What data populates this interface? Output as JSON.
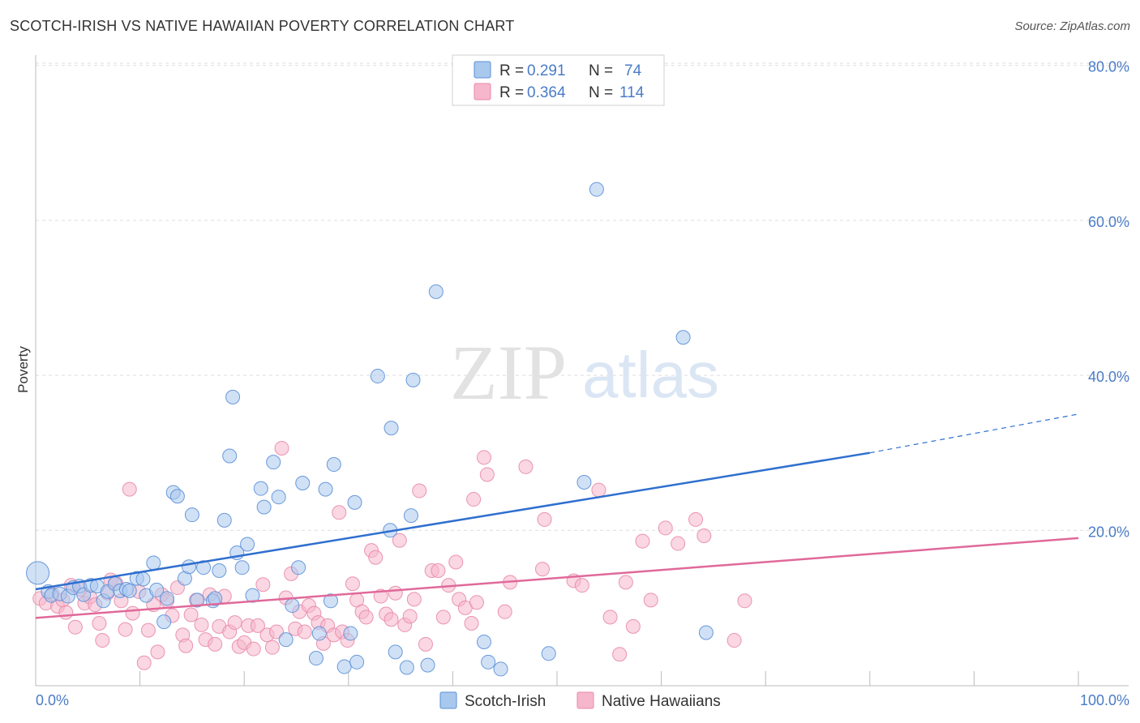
{
  "title": "SCOTCH-IRISH VS NATIVE HAWAIIAN POVERTY CORRELATION CHART",
  "source": "Source: ZipAtlas.com",
  "watermark": {
    "zip": "ZIP",
    "atlas": "atlas"
  },
  "colors": {
    "blue_fill": "#a9c8ee",
    "blue_stroke": "#5b8fd6",
    "blue_line": "#2f6fcf",
    "pink_fill": "#f6b6cb",
    "pink_stroke": "#e88aab",
    "pink_line": "#e0699a",
    "tick_text": "#4a7cc7",
    "grid": "#dddddd"
  },
  "legend": {
    "rows": [
      {
        "r_label": "R =",
        "r_value": "0.291",
        "n_label": "N =",
        "n_value": "74"
      },
      {
        "r_label": "R =",
        "r_value": "0.364",
        "n_label": "N =",
        "n_value": "114"
      }
    ]
  },
  "chart_data": {
    "type": "scatter",
    "title": "SCOTCH-IRISH VS NATIVE HAWAIIAN POVERTY CORRELATION CHART",
    "xlabel": "",
    "ylabel": "Poverty",
    "xlim": [
      0,
      100
    ],
    "ylim": [
      0,
      86
    ],
    "x_tick_labels": [
      "0.0%",
      "100.0%"
    ],
    "y_ticks": [
      20,
      40,
      60,
      80
    ],
    "y_tick_labels": [
      "20.0%",
      "40.0%",
      "60.0%",
      "80.0%"
    ],
    "grid": true,
    "legend_position": "top-center",
    "series": [
      {
        "name": "Scotch-Irish",
        "color": "#a9c8ee",
        "trend": {
          "x": [
            0,
            80
          ],
          "y": [
            12.4,
            30.0
          ],
          "dashed_to": [
            100,
            35.0
          ]
        },
        "points": [
          [
            0.2,
            14.5
          ],
          [
            1.2,
            12.1
          ],
          [
            1.5,
            11.6
          ],
          [
            2.3,
            11.8
          ],
          [
            3.1,
            11.5
          ],
          [
            3.6,
            12.6
          ],
          [
            4.2,
            12.8
          ],
          [
            4.6,
            11.7
          ],
          [
            5.3,
            12.9
          ],
          [
            5.9,
            12.8
          ],
          [
            6.5,
            10.9
          ],
          [
            6.9,
            12.1
          ],
          [
            7.6,
            13.1
          ],
          [
            8.1,
            12.2
          ],
          [
            8.7,
            12.4
          ],
          [
            9.0,
            12.2
          ],
          [
            9.7,
            13.8
          ],
          [
            10.3,
            13.7
          ],
          [
            10.6,
            11.6
          ],
          [
            11.6,
            12.3
          ],
          [
            12.3,
            8.2
          ],
          [
            12.6,
            11.2
          ],
          [
            11.3,
            15.8
          ],
          [
            13.2,
            24.9
          ],
          [
            13.6,
            24.4
          ],
          [
            14.3,
            13.8
          ],
          [
            15.0,
            22.0
          ],
          [
            14.7,
            15.3
          ],
          [
            16.1,
            15.2
          ],
          [
            17.0,
            10.9
          ],
          [
            17.2,
            11.2
          ],
          [
            17.6,
            14.8
          ],
          [
            18.1,
            21.3
          ],
          [
            18.6,
            29.6
          ],
          [
            18.9,
            37.2
          ],
          [
            19.3,
            17.1
          ],
          [
            19.8,
            15.2
          ],
          [
            20.3,
            18.2
          ],
          [
            20.8,
            11.6
          ],
          [
            21.6,
            25.4
          ],
          [
            21.9,
            23.0
          ],
          [
            22.8,
            28.8
          ],
          [
            23.3,
            24.3
          ],
          [
            24.0,
            5.9
          ],
          [
            24.6,
            10.3
          ],
          [
            25.2,
            15.2
          ],
          [
            25.6,
            26.1
          ],
          [
            26.9,
            3.5
          ],
          [
            27.2,
            6.7
          ],
          [
            27.8,
            25.3
          ],
          [
            28.3,
            10.9
          ],
          [
            28.6,
            28.5
          ],
          [
            29.6,
            2.4
          ],
          [
            30.2,
            6.7
          ],
          [
            30.6,
            23.6
          ],
          [
            30.8,
            3.0
          ],
          [
            32.8,
            39.9
          ],
          [
            34.1,
            33.2
          ],
          [
            34.5,
            4.3
          ],
          [
            35.6,
            2.3
          ],
          [
            36.2,
            39.4
          ],
          [
            37.6,
            2.6
          ],
          [
            38.4,
            50.8
          ],
          [
            43.0,
            5.6
          ],
          [
            43.4,
            3.0
          ],
          [
            44.6,
            2.1
          ],
          [
            49.2,
            4.1
          ],
          [
            52.6,
            26.2
          ],
          [
            53.8,
            64.0
          ],
          [
            62.1,
            44.9
          ],
          [
            64.3,
            6.8
          ],
          [
            36.0,
            21.9
          ],
          [
            34.0,
            20.0
          ],
          [
            15.5,
            11.0
          ]
        ]
      },
      {
        "name": "Native Hawaiians",
        "color": "#f6b6cb",
        "trend": {
          "x": [
            0,
            100
          ],
          "y": [
            8.7,
            19.0
          ]
        },
        "points": [
          [
            0.4,
            11.2
          ],
          [
            1.0,
            10.6
          ],
          [
            1.6,
            11.8
          ],
          [
            2.1,
            10.2
          ],
          [
            2.6,
            11.0
          ],
          [
            2.9,
            9.4
          ],
          [
            3.4,
            12.9
          ],
          [
            3.8,
            7.5
          ],
          [
            4.3,
            12.4
          ],
          [
            4.7,
            10.6
          ],
          [
            5.2,
            11.4
          ],
          [
            5.7,
            10.4
          ],
          [
            6.1,
            8.0
          ],
          [
            6.4,
            5.8
          ],
          [
            6.9,
            11.9
          ],
          [
            7.2,
            13.6
          ],
          [
            7.7,
            13.2
          ],
          [
            8.2,
            10.9
          ],
          [
            8.6,
            7.2
          ],
          [
            9.0,
            25.3
          ],
          [
            9.3,
            9.3
          ],
          [
            9.9,
            12.1
          ],
          [
            10.4,
            2.9
          ],
          [
            10.8,
            7.1
          ],
          [
            11.3,
            10.4
          ],
          [
            11.7,
            4.3
          ],
          [
            12.1,
            11.7
          ],
          [
            12.6,
            10.9
          ],
          [
            13.1,
            9.0
          ],
          [
            13.6,
            12.6
          ],
          [
            14.1,
            6.5
          ],
          [
            14.4,
            5.1
          ],
          [
            14.9,
            9.1
          ],
          [
            15.4,
            11.0
          ],
          [
            15.9,
            7.8
          ],
          [
            16.3,
            5.9
          ],
          [
            16.7,
            11.7
          ],
          [
            17.2,
            5.3
          ],
          [
            17.6,
            7.6
          ],
          [
            18.1,
            11.5
          ],
          [
            18.6,
            6.9
          ],
          [
            19.1,
            8.1
          ],
          [
            19.5,
            5.0
          ],
          [
            20.0,
            5.5
          ],
          [
            20.4,
            7.7
          ],
          [
            20.9,
            4.7
          ],
          [
            21.3,
            7.7
          ],
          [
            21.8,
            13.0
          ],
          [
            22.2,
            6.5
          ],
          [
            22.7,
            4.9
          ],
          [
            23.1,
            6.9
          ],
          [
            23.6,
            30.6
          ],
          [
            24.0,
            11.3
          ],
          [
            24.5,
            14.4
          ],
          [
            24.9,
            7.3
          ],
          [
            25.3,
            9.5
          ],
          [
            25.8,
            6.9
          ],
          [
            26.2,
            10.3
          ],
          [
            26.7,
            9.3
          ],
          [
            27.1,
            8.1
          ],
          [
            27.6,
            5.4
          ],
          [
            28.0,
            7.7
          ],
          [
            28.6,
            6.5
          ],
          [
            29.1,
            22.3
          ],
          [
            29.4,
            6.9
          ],
          [
            29.9,
            5.8
          ],
          [
            30.4,
            13.1
          ],
          [
            30.8,
            11.0
          ],
          [
            31.3,
            9.5
          ],
          [
            31.7,
            8.8
          ],
          [
            32.2,
            17.4
          ],
          [
            32.6,
            16.5
          ],
          [
            33.1,
            11.5
          ],
          [
            33.6,
            9.2
          ],
          [
            34.1,
            8.5
          ],
          [
            34.5,
            11.9
          ],
          [
            34.9,
            18.7
          ],
          [
            35.4,
            7.8
          ],
          [
            35.9,
            8.9
          ],
          [
            36.3,
            11.1
          ],
          [
            36.8,
            25.1
          ],
          [
            37.4,
            5.3
          ],
          [
            38.0,
            14.8
          ],
          [
            38.6,
            14.8
          ],
          [
            39.1,
            8.8
          ],
          [
            39.6,
            12.9
          ],
          [
            40.3,
            15.9
          ],
          [
            40.6,
            11.1
          ],
          [
            41.2,
            10.0
          ],
          [
            41.8,
            8.0
          ],
          [
            42.0,
            24.0
          ],
          [
            42.3,
            10.7
          ],
          [
            43.0,
            29.4
          ],
          [
            43.3,
            27.2
          ],
          [
            45.0,
            9.5
          ],
          [
            45.5,
            13.3
          ],
          [
            47.0,
            28.2
          ],
          [
            48.6,
            15.0
          ],
          [
            48.8,
            21.4
          ],
          [
            51.6,
            13.5
          ],
          [
            52.4,
            12.9
          ],
          [
            54.0,
            25.2
          ],
          [
            55.1,
            8.8
          ],
          [
            56.0,
            4.0
          ],
          [
            56.6,
            13.3
          ],
          [
            57.3,
            7.6
          ],
          [
            58.2,
            18.6
          ],
          [
            59.0,
            11.0
          ],
          [
            60.4,
            20.3
          ],
          [
            61.6,
            18.3
          ],
          [
            63.3,
            21.4
          ],
          [
            64.1,
            19.3
          ],
          [
            67.0,
            5.8
          ],
          [
            68.0,
            10.9
          ]
        ]
      }
    ]
  },
  "bottom_legend": [
    {
      "label": "Scotch-Irish"
    },
    {
      "label": "Native Hawaiians"
    }
  ]
}
